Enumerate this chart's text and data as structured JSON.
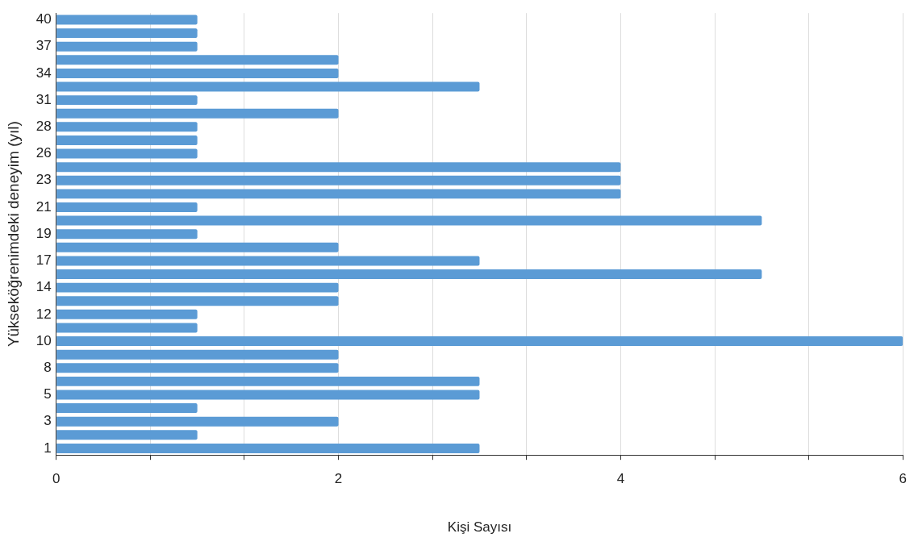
{
  "chart_data": {
    "type": "bar",
    "orientation": "horizontal",
    "xlabel": "Kişi Sayısı",
    "ylabel": "Yükseköğrenimdeki deneyim (yıl)",
    "categories": [
      "40",
      null,
      "37",
      null,
      "34",
      null,
      "31",
      null,
      "28",
      null,
      "26",
      null,
      "23",
      null,
      "21",
      null,
      "19",
      null,
      "17",
      null,
      "14",
      null,
      "12",
      null,
      "10",
      null,
      "8",
      null,
      "5",
      null,
      "3",
      null,
      "1"
    ],
    "values": [
      1,
      1,
      1,
      2,
      2,
      3,
      1,
      2,
      1,
      1,
      1,
      4,
      4,
      4,
      1,
      5,
      1,
      2,
      3,
      5,
      2,
      2,
      1,
      1,
      6,
      2,
      2,
      3,
      3,
      1,
      2,
      1,
      3
    ],
    "color": "#5b9bd5",
    "xlim": [
      0,
      6
    ],
    "xticks": [
      0,
      {
        "value": 0.667,
        "label": null
      },
      {
        "value": 1.333,
        "label": null
      },
      2,
      {
        "value": 2.667,
        "label": null
      },
      {
        "value": 3.333,
        "label": null
      },
      4,
      {
        "value": 4.667,
        "label": null
      },
      {
        "value": 5.333,
        "label": null
      },
      6
    ],
    "grid": "x",
    "legend": false
  }
}
